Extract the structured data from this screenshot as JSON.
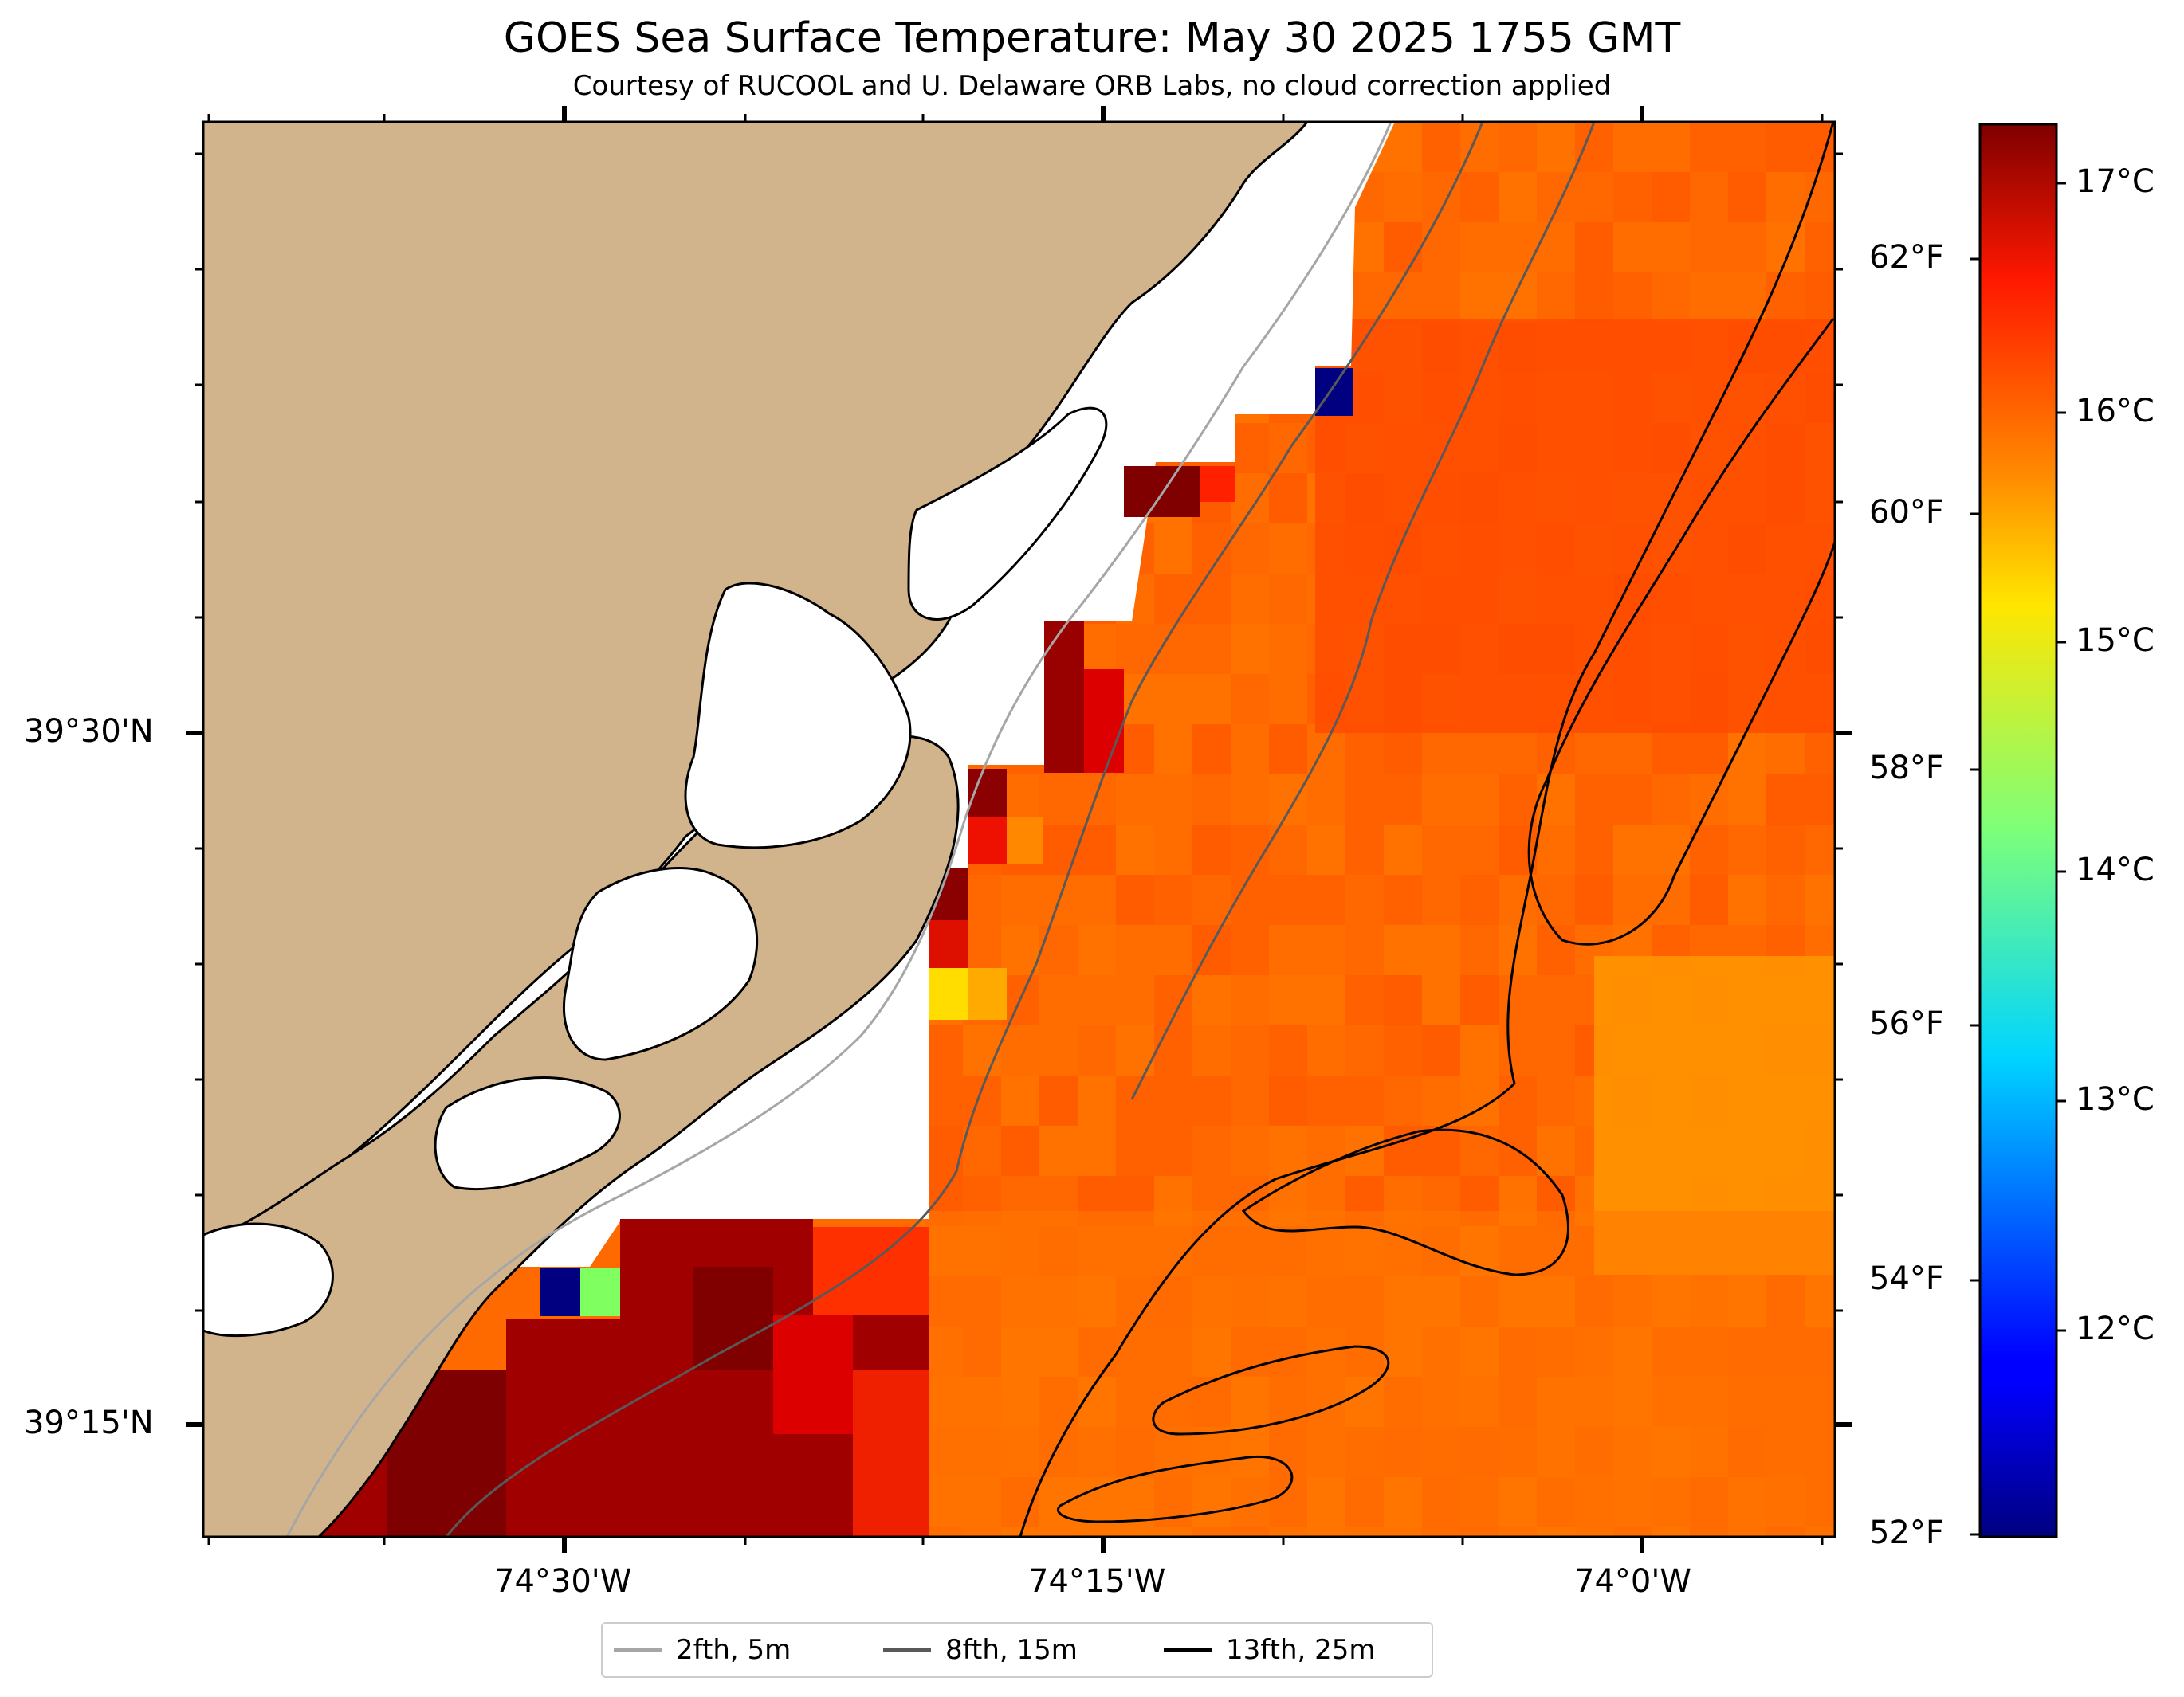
{
  "title": "GOES Sea Surface Temperature: May 30 2025 1755 GMT",
  "subtitle": "Courtesy of RUCOOL and U. Delaware ORB Labs, no cloud correction applied",
  "map": {
    "longitude_labels": [
      "74°30'W",
      "74°15'W",
      "74°0'W"
    ],
    "latitude_labels": [
      "39°30'N",
      "39°15'N"
    ],
    "land_color": "#d2b48c",
    "coastline_color": "#000000",
    "no_data_color": "#ffffff"
  },
  "colorbar": {
    "celsius_labels": [
      "17°C",
      "16°C",
      "15°C",
      "14°C",
      "13°C",
      "12°C"
    ],
    "fahrenheit_labels": [
      "62°F",
      "60°F",
      "58°F",
      "56°F",
      "54°F",
      "52°F"
    ],
    "colormap": "jet"
  },
  "legend": {
    "items": [
      {
        "label": "2fth, 5m",
        "color": "#a6a6a6"
      },
      {
        "label": "8fth, 15m",
        "color": "#595959"
      },
      {
        "label": "13fth, 25m",
        "color": "#000000"
      }
    ]
  }
}
